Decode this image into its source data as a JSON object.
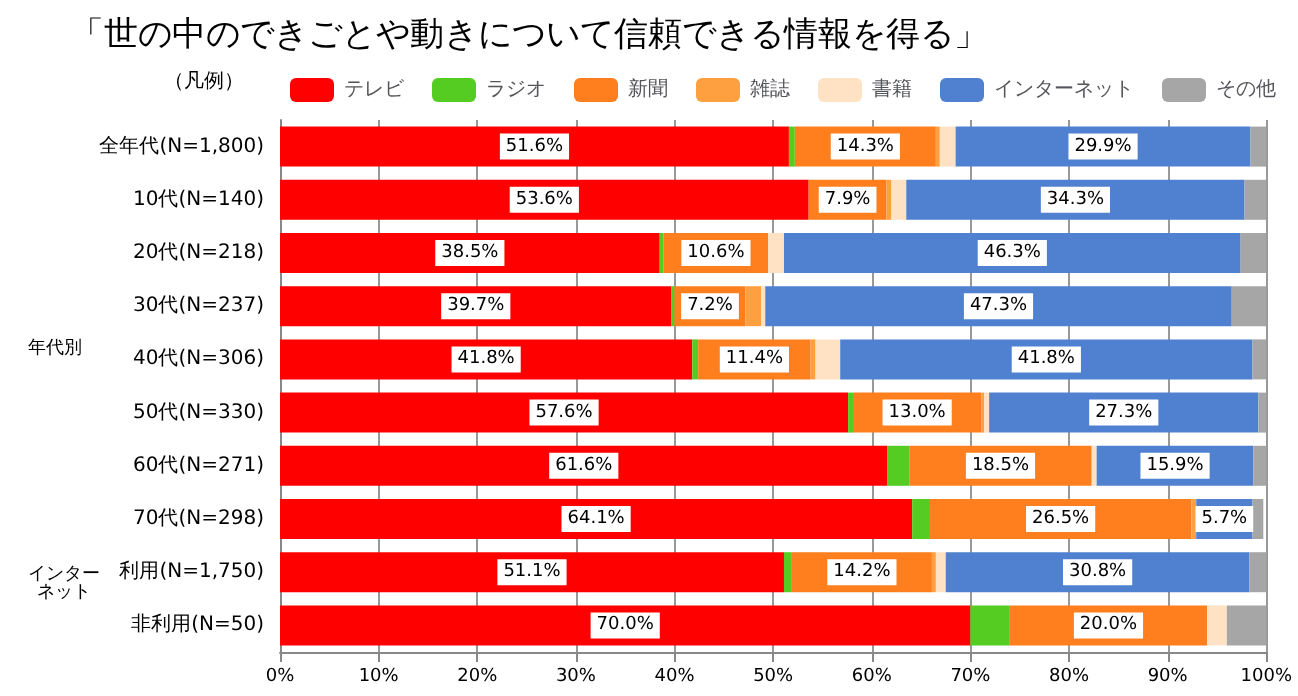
{
  "chart_data": {
    "type": "bar",
    "orientation": "horizontal",
    "stacked": true,
    "title": "「世の中のできごとや動きについて信頼できる情報を得る」",
    "legend_title": "（凡例）",
    "categories": [
      "全年代(N=1,800)",
      "10代(N=140)",
      "20代(N=218)",
      "30代(N=237)",
      "40代(N=306)",
      "50代(N=330)",
      "60代(N=271)",
      "70代(N=298)",
      "利用(N=1,750)",
      "非利用(N=50)"
    ],
    "series": [
      {
        "name": "テレビ",
        "color": "#ff0000",
        "values": [
          51.6,
          53.6,
          38.5,
          39.7,
          41.8,
          57.6,
          61.6,
          64.1,
          51.1,
          70.0
        ],
        "value_labels": [
          "51.6%",
          "53.6%",
          "38.5%",
          "39.7%",
          "41.8%",
          "57.6%",
          "61.6%",
          "64.1%",
          "51.1%",
          "70.0%"
        ]
      },
      {
        "name": "ラジオ",
        "color": "#55cc22",
        "values": [
          0.6,
          0,
          0.4,
          0.3,
          0.6,
          0.5,
          2.2,
          1.8,
          0.8,
          4.0
        ]
      },
      {
        "name": "新聞",
        "color": "#ff7f1e",
        "values": [
          14.3,
          7.9,
          10.6,
          7.2,
          11.4,
          13.0,
          18.5,
          26.5,
          14.2,
          20.0
        ],
        "value_labels": [
          "14.3%",
          "7.9%",
          "10.6%",
          "7.2%",
          "11.4%",
          "13.0%",
          "18.5%",
          "26.5%",
          "14.2%",
          "20.0%"
        ]
      },
      {
        "name": "雑誌",
        "color": "#ffa040",
        "values": [
          0.4,
          0.5,
          0,
          1.6,
          0.5,
          0.3,
          0,
          0.5,
          0.4,
          0
        ]
      },
      {
        "name": "書籍",
        "color": "#ffe2c4",
        "values": [
          1.6,
          1.5,
          1.6,
          0.4,
          2.5,
          0.5,
          0.5,
          null,
          1.0,
          2.0
        ]
      },
      {
        "name": "インターネット",
        "color": "#4f81d0",
        "values": [
          29.9,
          34.3,
          46.3,
          47.3,
          41.8,
          27.3,
          15.9,
          5.7,
          30.8,
          0
        ],
        "value_labels": [
          "29.9%",
          "34.3%",
          "46.3%",
          "47.3%",
          "41.8%",
          "27.3%",
          "15.9%",
          "5.7%",
          "30.8%",
          null
        ]
      },
      {
        "name": "その他",
        "color": "#a6a6a6",
        "values": [
          1.6,
          2.2,
          2.6,
          3.5,
          1.4,
          0.8,
          1.3,
          1.1,
          1.7,
          4.0
        ]
      }
    ],
    "xlim": [
      0,
      100
    ],
    "xticks": [
      {
        "value": 0,
        "label": "0%"
      },
      {
        "value": 10,
        "label": "10%"
      },
      {
        "value": 20,
        "label": "20%"
      },
      {
        "value": 30,
        "label": "30%"
      },
      {
        "value": 40,
        "label": "40%"
      },
      {
        "value": 50,
        "label": "50%"
      },
      {
        "value": 60,
        "label": "60%"
      },
      {
        "value": 70,
        "label": "70%"
      },
      {
        "value": 80,
        "label": "80%"
      },
      {
        "value": 90,
        "label": "90%"
      },
      {
        "value": 100,
        "label": "100%"
      }
    ],
    "annotations": [
      "年代別",
      "インターネット"
    ],
    "grid": "x",
    "legend": "top"
  }
}
